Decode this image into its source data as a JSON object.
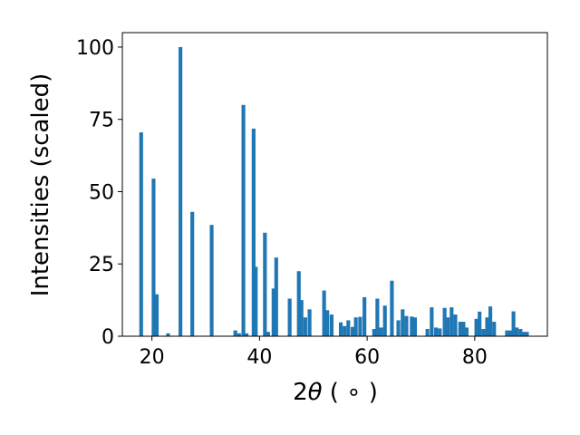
{
  "chart_data": {
    "type": "bar",
    "xlabel_prefix": "2",
    "xlabel_symbol": "θ",
    "xlabel_unit": " ( ∘ )",
    "ylabel": "Intensities (scaled)",
    "xlim": [
      14.5,
      93.5
    ],
    "ylim": [
      0,
      105
    ],
    "xticks": [
      20,
      40,
      60,
      80
    ],
    "yticks": [
      0,
      25,
      50,
      75,
      100
    ],
    "grid": false,
    "legend": "none",
    "bar_width": 0.7,
    "color": "#1f77b4",
    "x": [
      18.0,
      20.3,
      20.9,
      23.0,
      25.3,
      27.5,
      31.1,
      35.5,
      36.2,
      37.0,
      37.6,
      38.9,
      39.3,
      41.0,
      41.6,
      42.6,
      43.1,
      45.6,
      47.3,
      47.8,
      48.5,
      49.3,
      52.0,
      52.6,
      53.4,
      55.1,
      55.8,
      56.5,
      57.3,
      57.9,
      58.7,
      59.5,
      61.3,
      61.9,
      62.6,
      63.3,
      64.6,
      65.8,
      66.6,
      67.3,
      68.3,
      68.9,
      71.2,
      72.0,
      72.8,
      73.5,
      74.4,
      75.0,
      75.7,
      76.4,
      77.3,
      77.9,
      78.5,
      80.3,
      80.9,
      81.6,
      82.3,
      82.9,
      83.6,
      86.0,
      86.7,
      87.2,
      87.8,
      88.5,
      89.1,
      89.7
    ],
    "values": [
      70.5,
      54.5,
      14.5,
      1.0,
      100.0,
      43.0,
      38.5,
      2.0,
      1.0,
      80.0,
      1.0,
      71.8,
      24.0,
      35.8,
      1.5,
      16.5,
      27.2,
      13.0,
      22.5,
      12.5,
      6.5,
      9.3,
      15.8,
      9.0,
      7.5,
      4.8,
      3.5,
      5.5,
      3.2,
      6.5,
      6.7,
      13.5,
      2.5,
      13.0,
      3.0,
      10.6,
      19.2,
      5.5,
      9.3,
      7.0,
      6.8,
      6.5,
      2.5,
      10.0,
      3.0,
      2.7,
      9.8,
      6.5,
      10.0,
      7.5,
      5.0,
      5.0,
      3.0,
      6.0,
      8.5,
      2.5,
      6.5,
      10.3,
      5.0,
      2.0,
      2.0,
      8.6,
      3.0,
      2.5,
      1.5,
      1.5
    ]
  }
}
